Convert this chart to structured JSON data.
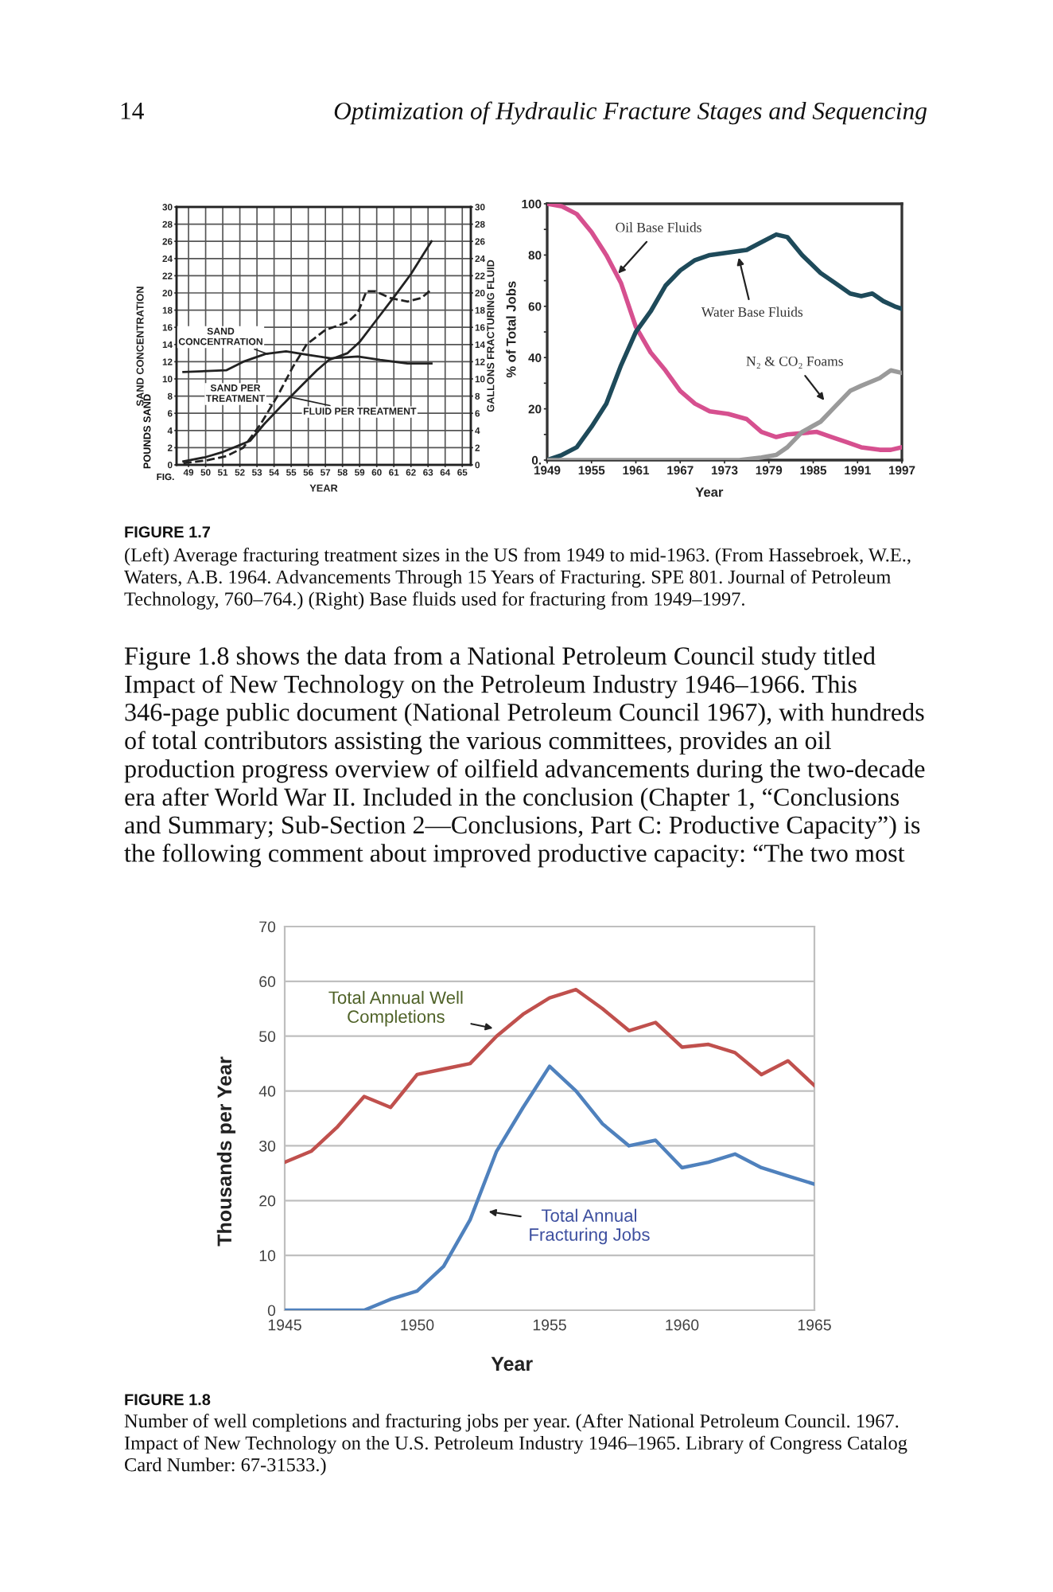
{
  "chart_data": [
    {
      "type": "line",
      "xlabel": "YEAR",
      "ylabel": "SAND CONCENTRATION",
      "y2label": "GALLONS FRACTURING FLUID",
      "annotations": [
        "14",
        "Optimization of Hydraulic Fracture Stages and Sequencing",
        "POUNDS SAND",
        "FIG."
      ],
      "xlim": [
        48.3,
        65.5
      ],
      "xticks": [
        49,
        50,
        51,
        52,
        53,
        54,
        55,
        56,
        57,
        58,
        59,
        60,
        61,
        62,
        63,
        64,
        65
      ],
      "ylim": [
        0,
        30
      ],
      "yticks": [
        0,
        2,
        4,
        6,
        8,
        10,
        12,
        14,
        16,
        18,
        20,
        22,
        24,
        26,
        28,
        30
      ],
      "y2lim": [
        0,
        30
      ],
      "y2ticks": [
        0,
        2,
        4,
        6,
        8,
        10,
        12,
        14,
        16,
        18,
        20,
        22,
        24,
        26,
        28,
        30
      ],
      "grid": true,
      "series": [
        {
          "name": "FLUID PER TREATMENT",
          "color": "#222222",
          "line_style": "solid",
          "x": [
            48.7,
            50,
            51,
            52,
            52.6,
            53.4,
            54.5,
            55.5,
            56.5,
            57.2,
            58.3,
            59,
            60,
            61,
            62,
            63.2
          ],
          "values": [
            0.4,
            0.9,
            1.5,
            2.3,
            2.8,
            4.7,
            7,
            9,
            11,
            12.2,
            13,
            14.3,
            16.9,
            19.5,
            22.2,
            26
          ]
        },
        {
          "name": "SAND PER TREATMENT",
          "color": "#222222",
          "line_style": "dashed",
          "x": [
            48.7,
            50,
            51.2,
            52.2,
            53.2,
            54.2,
            55.1,
            55.9,
            57,
            58.3,
            58.9,
            59.4,
            59.9,
            60.8,
            61.8,
            62.6,
            63.2
          ],
          "values": [
            0.2,
            0.5,
            1,
            2,
            4.7,
            8,
            11.4,
            14,
            15.7,
            16.6,
            17.7,
            20.2,
            20.2,
            19.4,
            19,
            19.4,
            20.4
          ]
        },
        {
          "name": "SAND CONCENTRATION",
          "color": "#222222",
          "line_style": "solid",
          "x": [
            48.7,
            51.2,
            52.2,
            53.5,
            54.7,
            56,
            57.3,
            58.9,
            60.2,
            61.8,
            63.2
          ],
          "values": [
            10.8,
            11,
            12,
            12.9,
            13.2,
            12.8,
            12.4,
            12.6,
            12.2,
            11.8,
            11.8
          ]
        }
      ]
    },
    {
      "type": "line",
      "xlabel": "Year",
      "ylabel": "% of Total Jobs",
      "annotations": [
        "FIGURE 1.7",
        "(Left) Average fracturing treatment sizes in the US from 1949 to mid-1963. (From Hassebroek, W.E., Waters, A.B. 1964. Advancements Through 15 Years of Fracturing. SPE 801. Journal of Petroleum Technology, 760–764.) (Right) Base fluids used for fracturing from 1949–1997."
      ],
      "xlim": [
        1949,
        1997
      ],
      "xticks": [
        1949,
        1955,
        1961,
        1967,
        1973,
        1979,
        1985,
        1991,
        1997
      ],
      "ylim": [
        0,
        100
      ],
      "yticks": [
        {
          "value": 0,
          "label": "0."
        },
        {
          "value": 10,
          "label": null
        },
        20,
        {
          "value": 30,
          "label": null
        },
        40,
        {
          "value": 50,
          "label": null
        },
        60,
        {
          "value": 70,
          "label": null
        },
        80,
        {
          "value": 90,
          "label": null
        },
        100
      ],
      "series": [
        {
          "name": "Oil Base Fluids",
          "color": "#d6508f",
          "x": [
            1949,
            1951,
            1953,
            1955,
            1957,
            1959,
            1961,
            1963,
            1965,
            1967,
            1969,
            1971,
            1973.5,
            1976,
            1978,
            1980,
            1981.5,
            1985.5,
            1987.5,
            1989.5,
            1991.5,
            1994,
            1995.5,
            1997
          ],
          "values": [
            100,
            99,
            96,
            89,
            80,
            69,
            52,
            42,
            35,
            27,
            22,
            19,
            18,
            16,
            11,
            9,
            10,
            11,
            9,
            7,
            5,
            4,
            4,
            5
          ]
        },
        {
          "name": "Water Base Fluids",
          "color": "#1e4a5a",
          "x": [
            1949,
            1951,
            1953,
            1955,
            1957,
            1959,
            1961,
            1963,
            1965,
            1967,
            1969,
            1971,
            1973.5,
            1976,
            1978,
            1980,
            1981.5,
            1983.5,
            1986,
            1988,
            1990,
            1991.5,
            1993,
            1994.5,
            1996,
            1997
          ],
          "values": [
            0,
            2,
            5,
            13,
            22,
            37,
            50,
            58,
            68,
            74,
            78,
            80,
            81,
            82,
            85,
            88,
            87,
            80,
            73,
            69,
            65,
            64,
            65,
            62,
            60,
            59
          ]
        },
        {
          "name": "N₂ & CO₂ Foams",
          "color": "#9a9a9a",
          "x": [
            1949,
            1975,
            1978,
            1980,
            1981.5,
            1983.5,
            1986,
            1988,
            1990,
            1991.5,
            1994,
            1995.5,
            1997
          ],
          "values": [
            0,
            0,
            1,
            2,
            5,
            11,
            15,
            21,
            27,
            29,
            32,
            35,
            34
          ]
        }
      ]
    },
    {
      "type": "line",
      "xlabel": "Year",
      "ylabel": "Thousands per Year",
      "annotations": [
        "Figure 1.8 shows the data from a National Petroleum Council study titled Impact of New Technology on the Petroleum Industry 1946–1966. This 346-page public document (National Petroleum Council 1967), with hundreds of total contributors assisting the various committees, provides an oil production progress overview of oilfield advancements during the two-decade era after World War II. Included in the conclusion (Chapter 1, “Conclusions and Summary; Sub-Section 2—Conclusions, Part C: Productive Capacity”) is the following comment about improved productive capacity: “The two most",
        "FIGURE 1.8",
        "Number of well completions and fracturing jobs per year. (After National Petroleum Council. 1967. Impact of New Technology on the U.S. Petroleum Industry 1946–1965. Library of Congress Catalog Card Number: 67-31533.)"
      ],
      "x": [
        1945,
        1946,
        1947,
        1948,
        1949,
        1950,
        1951,
        1952,
        1953,
        1954,
        1955,
        1956,
        1957,
        1958,
        1959,
        1960,
        1961,
        1962,
        1963,
        1964,
        1965
      ],
      "xlim": [
        1945,
        1965
      ],
      "xticks": [
        1945,
        1950,
        1955,
        1960,
        1965
      ],
      "ylim": [
        0,
        70
      ],
      "yticks": [
        0,
        10,
        20,
        30,
        40,
        50,
        60,
        70
      ],
      "grid": "y",
      "series": [
        {
          "name": "Total Annual Well Completions",
          "color": "#c0504d",
          "values": [
            27,
            29,
            33.5,
            39,
            37,
            43,
            44,
            45,
            50,
            54,
            57,
            58.5,
            55,
            51,
            52.5,
            48,
            48.5,
            47,
            43,
            45.5,
            41
          ]
        },
        {
          "name": "Total Annual Fracturing Jobs",
          "color": "#4f81bd",
          "values": [
            0,
            0,
            0,
            0,
            2,
            3.5,
            8,
            16.5,
            29,
            37,
            44.5,
            40,
            34,
            30,
            31,
            26,
            27,
            28.5,
            26,
            24.5,
            23
          ]
        }
      ]
    }
  ]
}
